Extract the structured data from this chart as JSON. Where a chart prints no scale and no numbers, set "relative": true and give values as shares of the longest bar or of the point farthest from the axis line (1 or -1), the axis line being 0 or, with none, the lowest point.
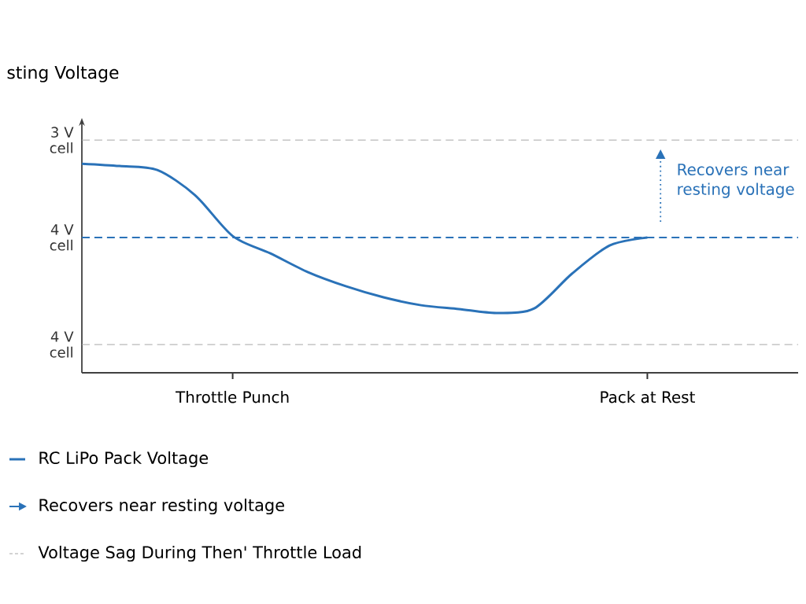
{
  "chart_data": {
    "type": "line",
    "relative": true,
    "ylabel": "sting Voltage",
    "categories": [
      null,
      null,
      null,
      null,
      "Throttle Punch",
      null,
      null,
      null,
      null,
      null,
      null,
      null,
      null,
      null,
      null,
      "Pack at Rest",
      null,
      null,
      null,
      null
    ],
    "series": [
      {
        "name": "RC LiPo Pack Voltage",
        "color": "#2a72b8",
        "values": [
          1.0,
          0.989,
          0.97,
          0.85,
          0.654,
          0.571,
          0.481,
          0.414,
          0.361,
          0.323,
          0.305,
          0.286,
          0.308,
          0.474,
          0.609,
          0.647,
          null,
          null,
          null,
          null
        ]
      }
    ],
    "ref_lines": [
      {
        "axis": "y",
        "value": 1.113,
        "label": "3 V cell",
        "color": "#a6a6a6",
        "line_style": "dashed"
      },
      {
        "axis": "y",
        "value": 0.647,
        "label": "4 V cell",
        "color": "#2a72b8",
        "line_style": "dashed"
      },
      {
        "axis": "y",
        "value": 0.135,
        "label": "4 V cell",
        "color": "#a6a6a6",
        "line_style": "dashed"
      }
    ],
    "annotations": [
      "Recovers near resting voltage",
      "Recovers near resting voltage",
      "Voltage Sag During Then' Throttle Load"
    ],
    "legend": "bottom left"
  }
}
